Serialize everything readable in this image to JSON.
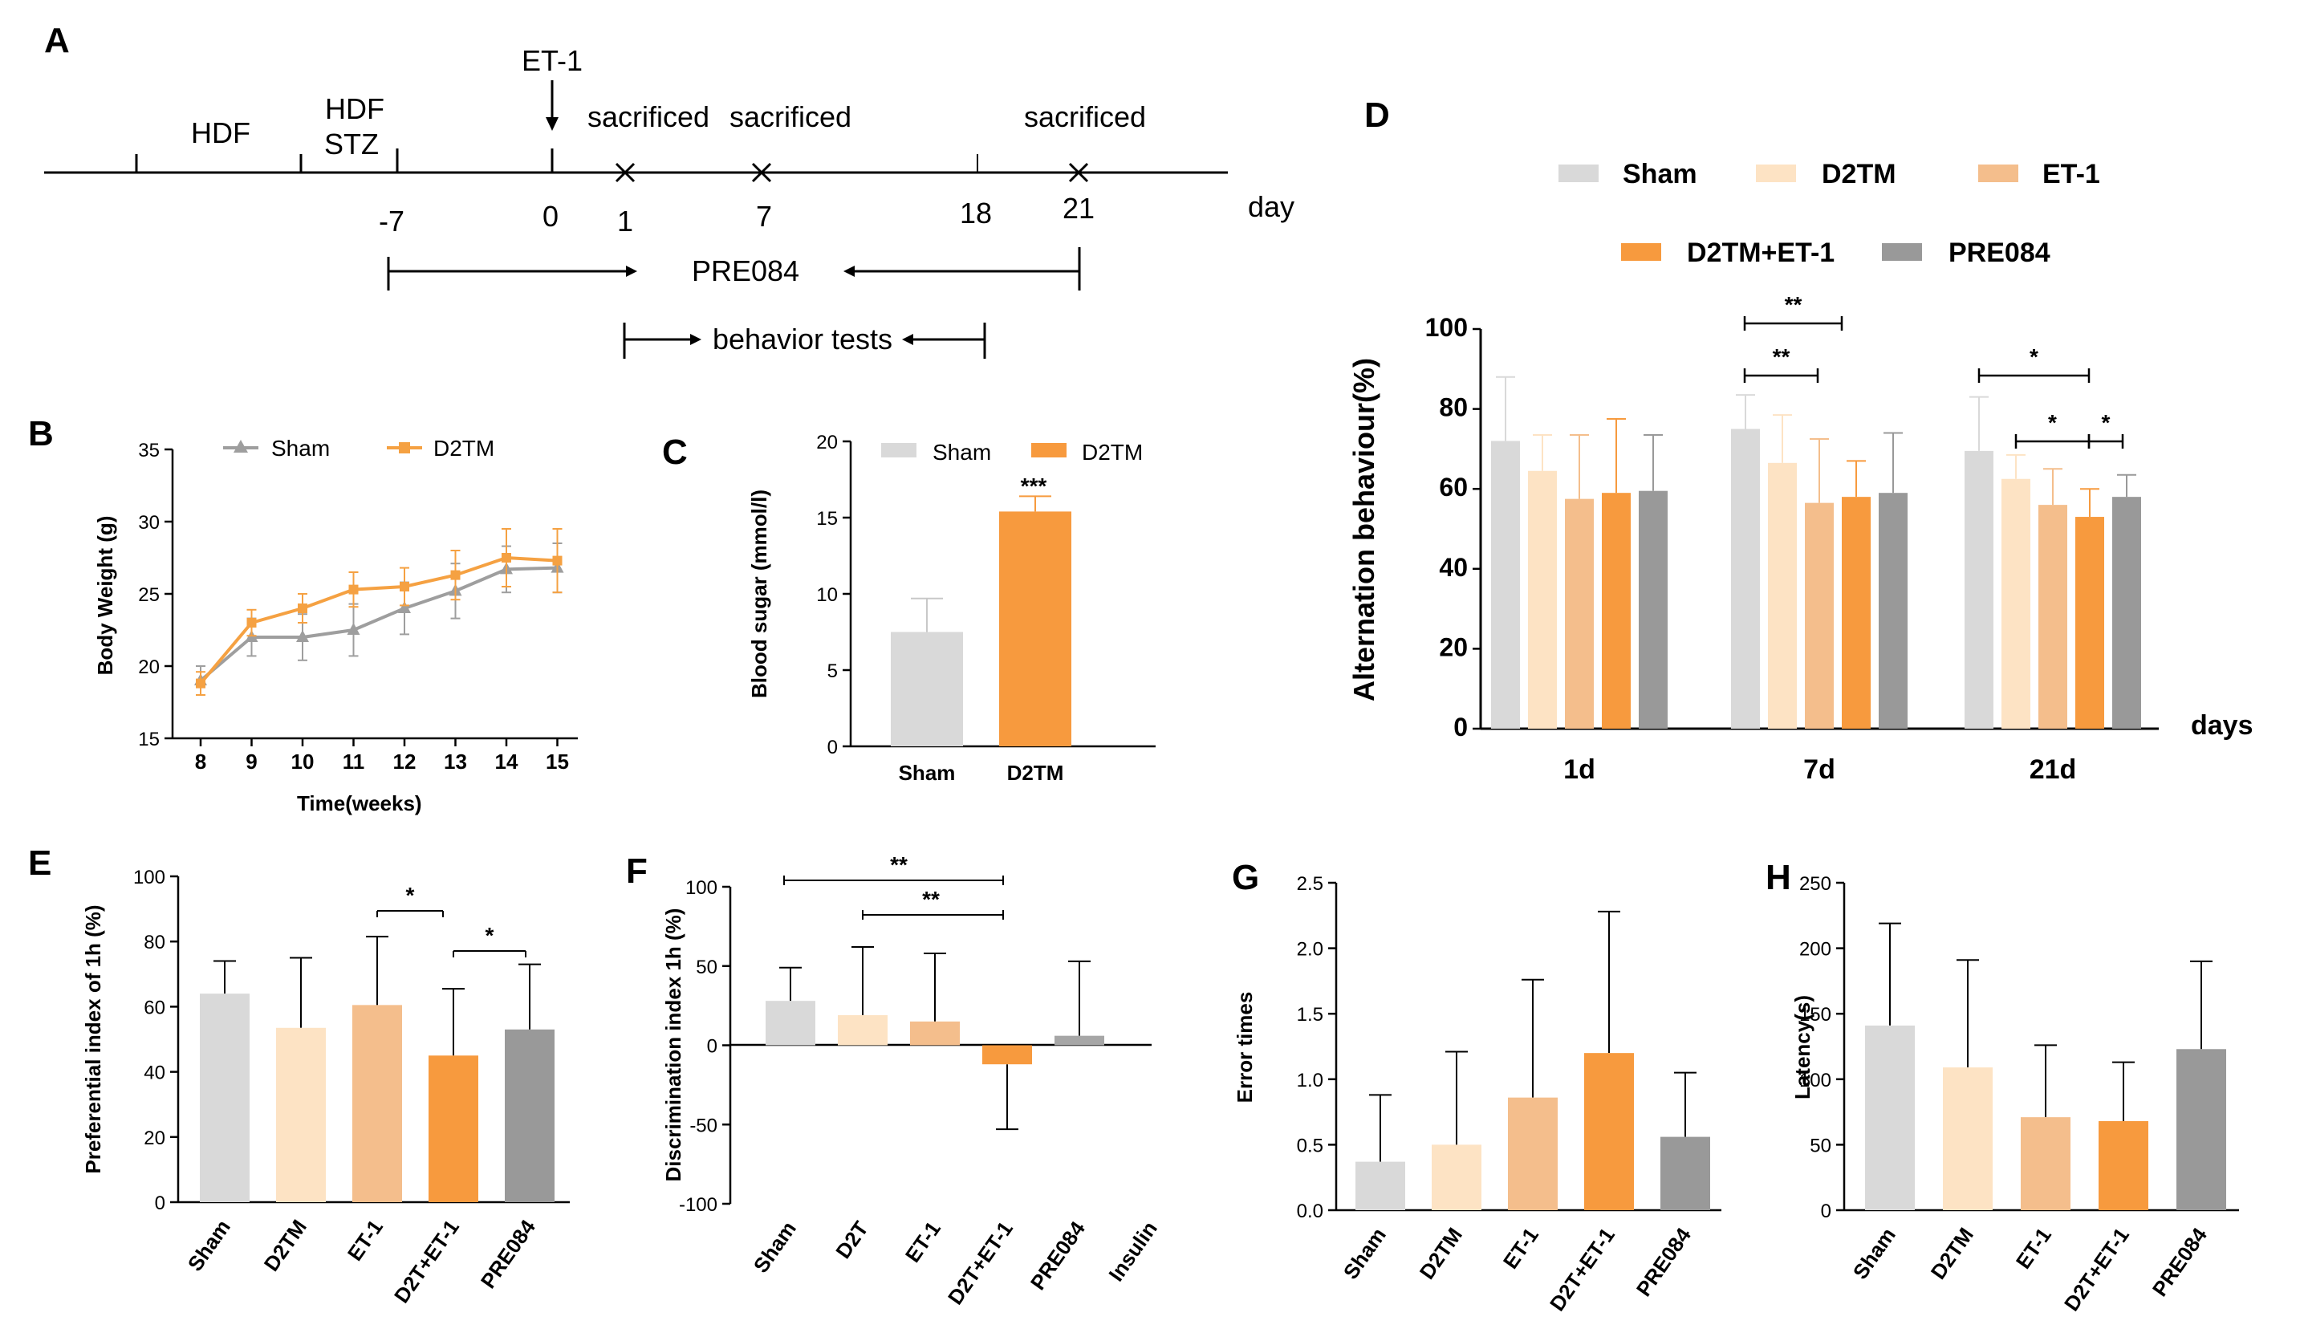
{
  "colors": {
    "sham": "#d9d9d9",
    "d2tm": "#fde3c4",
    "et1": "#f4be8c",
    "d2tm_et1": "#f79a3e",
    "pre084": "#999999",
    "insulin": "#a6a6a6",
    "line_gray": "#9e9e9e",
    "line_orange": "#f5a142"
  },
  "panelA": {
    "label": "A",
    "treatments": [
      "HDF",
      "HDF\nSTZ",
      "ET-1"
    ],
    "sacrificed": [
      "sacrificed",
      "sacrificed",
      "sacrificed"
    ],
    "ticks": [
      "-7",
      "0",
      "1",
      "7",
      "18",
      "21"
    ],
    "unit": "day",
    "range1": "PRE084",
    "range2": "behavior tests"
  },
  "chart_data": [
    {
      "panel": "B",
      "type": "line",
      "xlabel": "Time(weeks)",
      "ylabel": "Body Weight (g)",
      "x": [
        8,
        9,
        10,
        11,
        12,
        13,
        14,
        15
      ],
      "ylim": [
        15,
        35
      ],
      "yticks": [
        "15",
        "20",
        "25",
        "30",
        "35"
      ],
      "series": [
        {
          "name": "Sham",
          "values": [
            19.0,
            22.0,
            22.0,
            22.5,
            24.0,
            25.2,
            26.7,
            26.8
          ],
          "err": [
            1.0,
            1.3,
            1.6,
            1.8,
            1.8,
            1.9,
            1.6,
            1.7
          ]
        },
        {
          "name": "D2TM",
          "values": [
            18.8,
            23.0,
            24.0,
            25.3,
            25.5,
            26.3,
            27.5,
            27.3
          ],
          "err": [
            0.8,
            0.9,
            1.0,
            1.2,
            1.3,
            1.7,
            2.0,
            2.2
          ]
        }
      ]
    },
    {
      "panel": "C",
      "type": "bar",
      "ylabel": "Blood sugar (mmol/l)",
      "categories": [
        "Sham",
        "D2TM"
      ],
      "values": [
        7.5,
        15.4
      ],
      "err": [
        2.2,
        1.0
      ],
      "ylim": [
        0,
        20
      ],
      "yticks": [
        "0",
        "5",
        "10",
        "15",
        "20"
      ],
      "legend": [
        "Sham",
        "D2TM"
      ],
      "annotation": "***"
    },
    {
      "panel": "D",
      "type": "bar",
      "ylabel": "Alternation  behaviour(%)",
      "xlabel": "days",
      "categories": [
        "1d",
        "7d",
        "21d"
      ],
      "ylim": [
        0,
        100
      ],
      "yticks": [
        "0",
        "20",
        "40",
        "60",
        "80",
        "100"
      ],
      "series": [
        {
          "name": "Sham",
          "values": [
            72,
            75,
            69.5
          ],
          "err": [
            16,
            8.5,
            13.5
          ]
        },
        {
          "name": "D2TM",
          "values": [
            64.5,
            66.5,
            62.5
          ],
          "err": [
            9,
            12,
            6
          ]
        },
        {
          "name": "ET-1",
          "values": [
            57.5,
            56.5,
            56
          ],
          "err": [
            16,
            16,
            9
          ]
        },
        {
          "name": "D2TM+ET-1",
          "values": [
            59,
            58,
            53
          ],
          "err": [
            18.5,
            9,
            7
          ]
        },
        {
          "name": "PRE084",
          "values": [
            59.5,
            59,
            58
          ],
          "err": [
            14,
            15,
            5.5
          ]
        }
      ],
      "significance": [
        "**",
        "**",
        "*",
        "*",
        "*"
      ]
    },
    {
      "panel": "E",
      "type": "bar",
      "ylabel": "Preferential index of  1h (%)",
      "categories": [
        "Sham",
        "D2TM",
        "ET-1",
        "D2T+ET-1",
        "PRE084"
      ],
      "values": [
        64,
        53.5,
        60.5,
        45,
        53
      ],
      "err": [
        10,
        21.5,
        21,
        20.5,
        20
      ],
      "ylim": [
        0,
        100
      ],
      "yticks": [
        "0",
        "20",
        "40",
        "60",
        "80",
        "100"
      ],
      "significance": [
        "*",
        "*"
      ]
    },
    {
      "panel": "F",
      "type": "bar",
      "ylabel": "Discrimination index 1h (%)",
      "categories": [
        "Sham",
        "D2T",
        "ET-1",
        "D2T+ET-1",
        "PRE084",
        "Insulin"
      ],
      "values": [
        28,
        19,
        15,
        -12,
        6,
        0
      ],
      "err": [
        21,
        43,
        43,
        41,
        47,
        0
      ],
      "ylim": [
        -100,
        100
      ],
      "yticks": [
        "-100",
        "-50",
        "0",
        "50",
        "100"
      ],
      "significance": [
        "**",
        "**"
      ]
    },
    {
      "panel": "G",
      "type": "bar",
      "ylabel": "Error  times",
      "categories": [
        "Sham",
        "D2TM",
        "ET-1",
        "D2T+ET-1",
        "PRE084"
      ],
      "values": [
        0.37,
        0.5,
        0.86,
        1.2,
        0.56
      ],
      "err": [
        0.51,
        0.71,
        0.9,
        1.08,
        0.49
      ],
      "ylim": [
        0,
        2.5
      ],
      "yticks": [
        "0.0",
        "0.5",
        "1.0",
        "1.5",
        "2.0",
        "2.5"
      ]
    },
    {
      "panel": "H",
      "type": "bar",
      "ylabel": "Latency(s)",
      "categories": [
        "Sham",
        "D2TM",
        "ET-1",
        "D2T+ET-1",
        "PRE084"
      ],
      "values": [
        141,
        109,
        71,
        68,
        123
      ],
      "err": [
        78,
        82,
        55,
        45,
        67
      ],
      "ylim": [
        0,
        250
      ],
      "yticks": [
        "0",
        "50",
        "100",
        "150",
        "200",
        "250"
      ]
    }
  ]
}
